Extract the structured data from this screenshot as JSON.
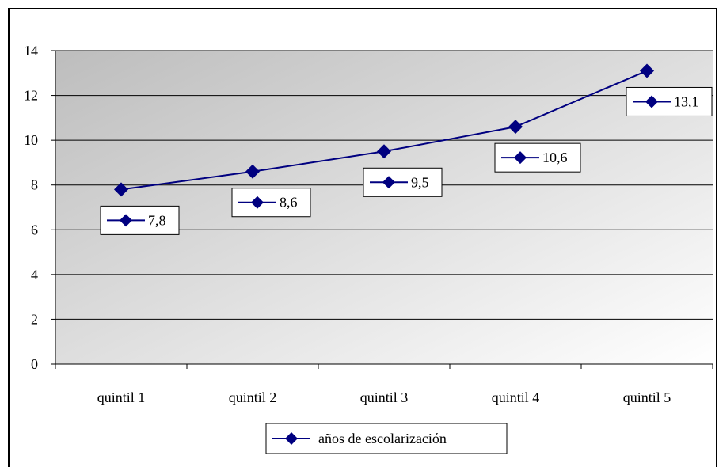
{
  "chart_data": {
    "type": "line",
    "categories": [
      "quintil 1",
      "quintil 2",
      "quintil 3",
      "quintil 4",
      "quintil 5"
    ],
    "series": [
      {
        "name": "años de escolarización",
        "values": [
          7.8,
          8.6,
          9.5,
          10.6,
          13.1
        ]
      }
    ],
    "data_labels": [
      "7,8",
      "8,6",
      "9,5",
      "10,6",
      "13,1"
    ],
    "y_ticks": [
      "0",
      "2",
      "4",
      "6",
      "8",
      "10",
      "12",
      "14"
    ],
    "ylim": [
      0,
      14
    ],
    "grid": true,
    "legend_position": "bottom",
    "colors": {
      "series": "#000080",
      "grid": "#000000",
      "plot_bg_dark": "#c0c0c0",
      "plot_bg_light": "#ffffff"
    }
  }
}
